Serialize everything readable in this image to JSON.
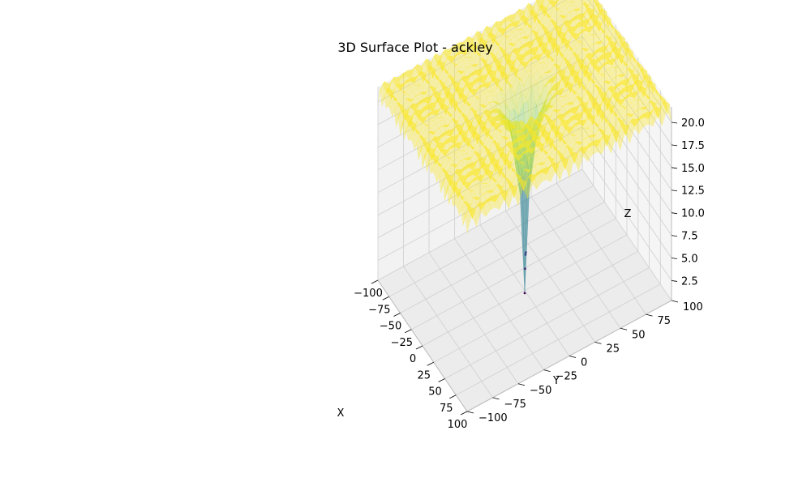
{
  "chart_data": {
    "type": "surface3d",
    "function": "ackley",
    "title": "3D Surface Plot - ackley",
    "xlabel": "X",
    "ylabel": "Y",
    "zlabel": "Z",
    "xlim": [
      -100,
      100
    ],
    "ylim": [
      -100,
      100
    ],
    "zlim": [
      0.3,
      21.7
    ],
    "x_ticks": [
      -100,
      -75,
      -50,
      -25,
      0,
      25,
      50,
      75,
      100
    ],
    "y_ticks": [
      -100,
      -75,
      -50,
      -25,
      0,
      25,
      50,
      75,
      100
    ],
    "z_ticks": [
      2.5,
      5.0,
      7.5,
      10.0,
      12.5,
      15.0,
      17.5,
      20.0
    ],
    "x_tick_labels": [
      "−100",
      "−75",
      "−50",
      "−25",
      "0",
      "25",
      "50",
      "75",
      "100"
    ],
    "y_tick_labels": [
      "−100",
      "−75",
      "−50",
      "−25",
      "0",
      "25",
      "50",
      "75",
      "100"
    ],
    "z_tick_labels": [
      "2.5",
      "5.0",
      "7.5",
      "10.0",
      "12.5",
      "15.0",
      "17.5",
      "20.0"
    ],
    "z_min_at_origin": 0.0,
    "z_plateau": 21.6,
    "colormap": "viridis",
    "surface_alpha": 0.35,
    "grid": true,
    "pane_color": "#f2f2f2",
    "grid_color": "#cfcfcf"
  }
}
